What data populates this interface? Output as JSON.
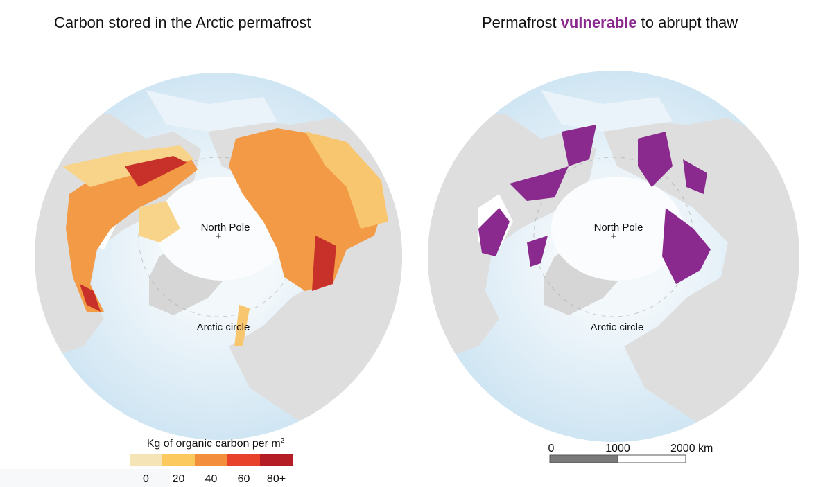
{
  "left_map": {
    "title": "Carbon stored in the Arctic permafrost",
    "labels": {
      "north_pole": "North Pole",
      "arctic_circle": "Arctic circle"
    }
  },
  "right_map": {
    "title_parts": [
      "Permafrost",
      "vulnerable",
      "to abrupt thaw"
    ],
    "highlight_color": "#8b2a8e",
    "labels": {
      "north_pole": "North Pole",
      "arctic_circle": "Arctic circle"
    }
  },
  "legend": {
    "title": "Kg of organic carbon per m",
    "title_sup": "2",
    "classes": [
      {
        "label": "0",
        "color": "#f5e4b5"
      },
      {
        "label": "20",
        "color": "#fcc95e"
      },
      {
        "label": "40",
        "color": "#f38f3c"
      },
      {
        "label": "60",
        "color": "#e8422a"
      },
      {
        "label": "80+",
        "color": "#b51d26"
      }
    ]
  },
  "scale_bar": {
    "labels": [
      "0",
      "1000",
      "2000 km"
    ]
  }
}
